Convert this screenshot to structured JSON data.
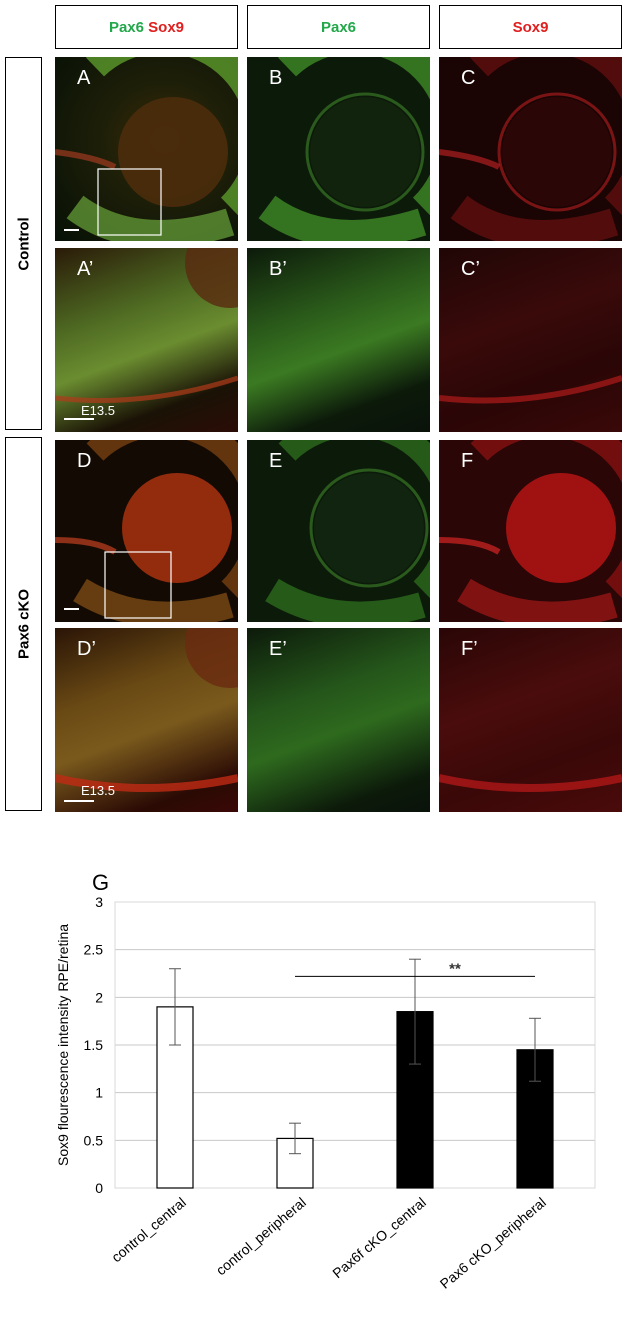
{
  "figure": {
    "headers": {
      "merged": {
        "green": "Pax6",
        "red": "Sox9"
      },
      "pax6": "Pax6",
      "sox9": "Sox9"
    },
    "rows": {
      "control": "Control",
      "cko": "Pax6 cKO"
    },
    "panels": {
      "A": "A",
      "B": "B",
      "C": "C",
      "A2": "A’",
      "B2": "B’",
      "C2": "C’",
      "D": "D",
      "E": "E",
      "F": "F",
      "D2": "D’",
      "E2": "E’",
      "F2": "F’"
    },
    "stage_label": "E13.5",
    "colors": {
      "green_label": "#22a84a",
      "red_label": "#e0201f"
    }
  },
  "chart_data": {
    "type": "bar",
    "panel_label": "G",
    "ylabel": "Sox9 flourescence intensity RPE/retina",
    "xlabel": "",
    "ylim": [
      0,
      3
    ],
    "yticks": [
      "0",
      "0.5",
      "1",
      "1.5",
      "2",
      "2.5",
      "3"
    ],
    "grid": true,
    "categories": [
      "control_central",
      "control_peripheral",
      "Pax6f cKO_central",
      "Pax6 cKO_peripheral"
    ],
    "values": [
      1.9,
      0.52,
      1.85,
      1.45
    ],
    "errors": [
      0.4,
      0.16,
      0.55,
      0.33
    ],
    "fills": [
      "#ffffff",
      "#ffffff",
      "#000000",
      "#000000"
    ],
    "significance": {
      "label": "**",
      "from": 1,
      "to": 3,
      "y": 2.22
    }
  }
}
